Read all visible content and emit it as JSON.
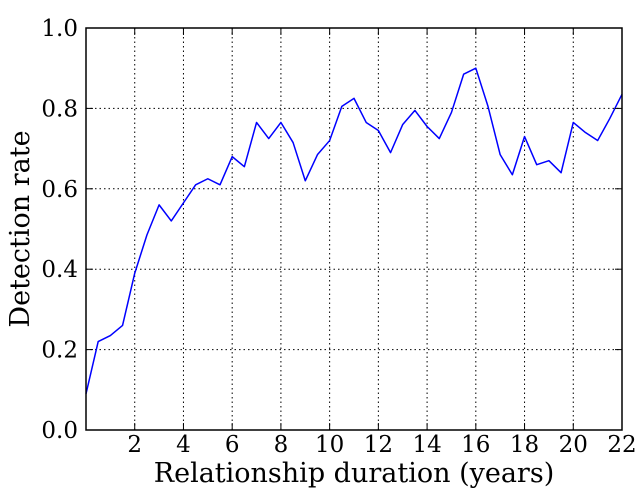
{
  "chart_data": {
    "type": "line",
    "xlabel": "Relationship duration (years)",
    "ylabel": "Detection rate",
    "xlim": [
      0,
      22
    ],
    "ylim": [
      0.0,
      1.0
    ],
    "grid": true,
    "line_color": "#0000ff",
    "x_ticks": [
      2,
      4,
      6,
      8,
      10,
      12,
      14,
      16,
      18,
      20,
      22
    ],
    "y_ticks": [
      0.0,
      0.2,
      0.4,
      0.6,
      0.8,
      1.0
    ],
    "x_tick_labels": [
      "2",
      "4",
      "6",
      "8",
      "10",
      "12",
      "14",
      "16",
      "18",
      "20",
      "22"
    ],
    "y_tick_labels": [
      "0.0",
      "0.2",
      "0.4",
      "0.6",
      "0.8",
      "1.0"
    ],
    "series": [
      {
        "x": [
          0,
          0.5,
          1,
          1.5,
          2,
          2.5,
          3,
          3.5,
          4,
          4.5,
          5,
          5.5,
          6,
          6.5,
          7,
          7.5,
          8,
          8.5,
          9,
          9.5,
          10,
          10.5,
          11,
          11.5,
          12,
          12.5,
          13,
          13.5,
          14,
          14.5,
          15,
          15.5,
          16,
          16.5,
          17,
          17.5,
          18,
          18.5,
          19,
          19.5,
          20,
          20.5,
          21,
          21.5,
          22
        ],
        "values": [
          0.09,
          0.22,
          0.235,
          0.26,
          0.39,
          0.485,
          0.56,
          0.52,
          0.565,
          0.61,
          0.625,
          0.61,
          0.68,
          0.655,
          0.765,
          0.725,
          0.765,
          0.715,
          0.62,
          0.685,
          0.72,
          0.805,
          0.825,
          0.765,
          0.745,
          0.69,
          0.76,
          0.795,
          0.755,
          0.725,
          0.79,
          0.885,
          0.9,
          0.805,
          0.685,
          0.635,
          0.73,
          0.66,
          0.67,
          0.64,
          0.765,
          0.74,
          0.72,
          0.775,
          0.835
        ]
      }
    ]
  }
}
